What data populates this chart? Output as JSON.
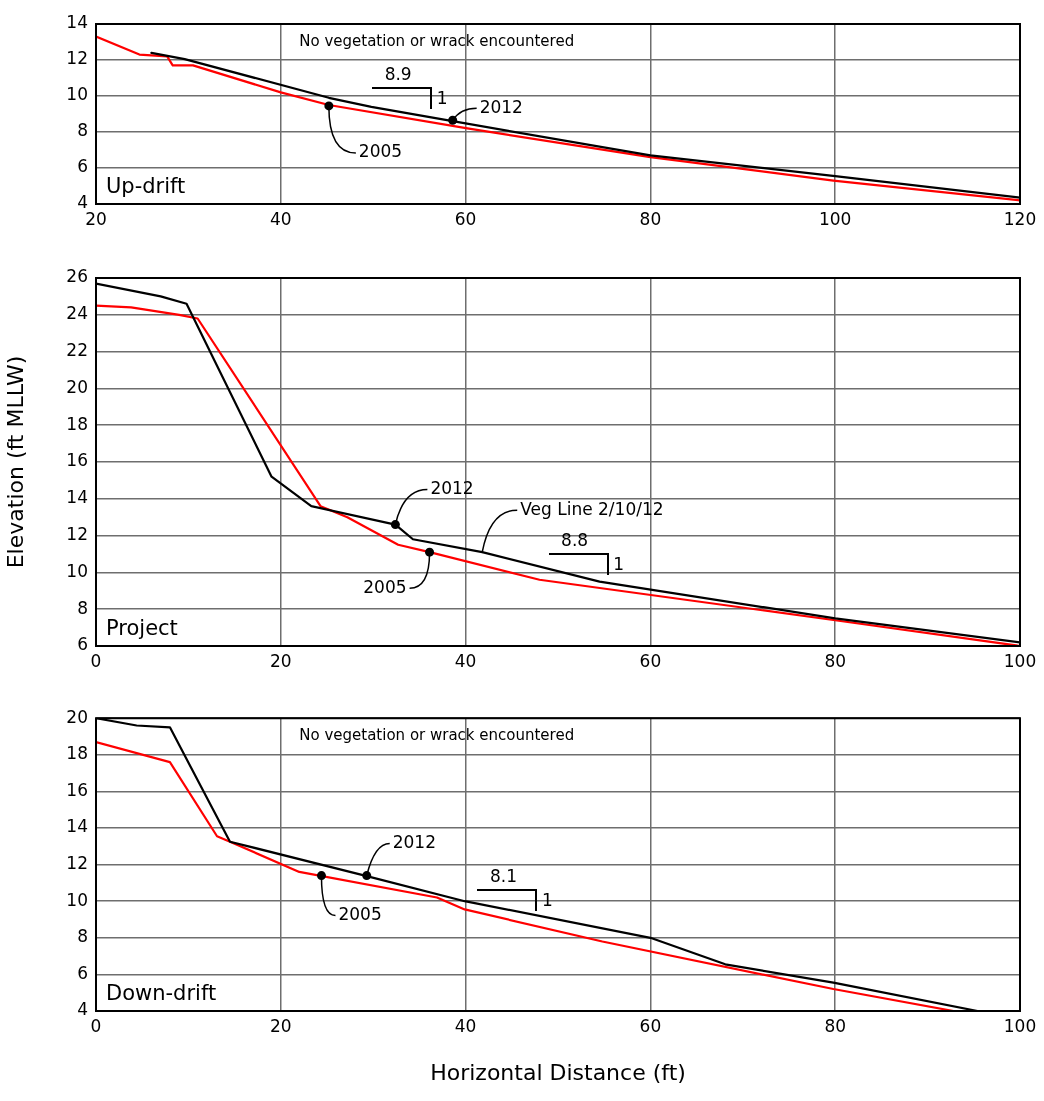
{
  "chart_data": [
    {
      "type": "line",
      "title": "Up-drift",
      "xlim": [
        20,
        120
      ],
      "xticks": [
        20,
        40,
        60,
        80,
        100,
        120
      ],
      "ylim": [
        4,
        14
      ],
      "yticks": [
        4,
        6,
        8,
        10,
        12,
        14
      ],
      "grid": true,
      "legend": false,
      "series": [
        {
          "color": "#000000",
          "x": [
            26,
            29.6,
            45.2,
            49.8,
            58.6,
            80,
            100,
            120
          ],
          "values": [
            12.4,
            12.05,
            9.9,
            9.4,
            8.6,
            6.7,
            5.55,
            4.35
          ]
        },
        {
          "color": "#ff0000",
          "x": [
            20,
            24.7,
            27.7,
            28.3,
            30.5,
            40,
            45.2,
            60.2,
            80,
            99.8,
            120
          ],
          "values": [
            13.3,
            12.3,
            12.2,
            11.7,
            11.7,
            10.2,
            9.5,
            8.2,
            6.6,
            5.3,
            4.2
          ]
        }
      ],
      "annotations": [
        "No vegetation or wrack encountered",
        "8.9",
        "1",
        {
          "text": "2012",
          "x": 58.6,
          "y": 8.65
        },
        {
          "text": "2005",
          "x": 45.2,
          "y": 9.45
        }
      ]
    },
    {
      "type": "line",
      "title": "Project",
      "ylabel": "Elevation (ft MLLW)",
      "xlim": [
        0,
        100
      ],
      "xticks": [
        0,
        20,
        40,
        60,
        80,
        100
      ],
      "ylim": [
        6,
        26
      ],
      "yticks": [
        6,
        8,
        10,
        12,
        14,
        16,
        18,
        20,
        22,
        24,
        26
      ],
      "grid": true,
      "legend": false,
      "series": [
        {
          "color": "#000000",
          "x": [
            0,
            7,
            9.8,
            19,
            23.3,
            32.4,
            34.3,
            41.8,
            54.5,
            80,
            100
          ],
          "values": [
            25.7,
            25.0,
            24.6,
            15.2,
            13.6,
            12.6,
            11.8,
            11.1,
            9.5,
            7.5,
            6.2
          ]
        },
        {
          "color": "#ff0000",
          "x": [
            0,
            3.8,
            9,
            11,
            24.3,
            27.2,
            32.7,
            36.1,
            48,
            80,
            100
          ],
          "values": [
            24.5,
            24.4,
            24.0,
            23.8,
            13.6,
            13.0,
            11.5,
            11.1,
            9.6,
            7.4,
            6.0
          ]
        }
      ],
      "annotations": [
        "8.8",
        "1",
        {
          "text": "2012",
          "x": 32.4,
          "y": 12.6
        },
        {
          "text": "2005",
          "x": 36.1,
          "y": 11.1
        },
        {
          "text": "Veg Line 2/10/12",
          "x": 41.8,
          "y": 11.1
        }
      ]
    },
    {
      "type": "line",
      "title": "Down-drift",
      "xlabel": "Horizontal Distance (ft)",
      "xlim": [
        0,
        100
      ],
      "xticks": [
        0,
        20,
        40,
        60,
        80,
        100
      ],
      "ylim": [
        4,
        20
      ],
      "yticks": [
        4,
        6,
        8,
        10,
        12,
        14,
        16,
        18,
        20
      ],
      "grid": true,
      "legend": false,
      "series": [
        {
          "color": "#000000",
          "x": [
            0,
            4.4,
            8,
            14.5,
            29.1,
            39.9,
            60,
            68.1,
            79.8,
            95.4
          ],
          "values": [
            20,
            19.6,
            19.5,
            13.25,
            11.4,
            10.0,
            8.0,
            6.55,
            5.55,
            4.0
          ]
        },
        {
          "color": "#ff0000",
          "x": [
            0,
            8,
            13.1,
            14.5,
            22,
            36.9,
            39.9,
            54.8,
            79.8,
            92.8
          ],
          "values": [
            18.7,
            17.6,
            13.55,
            13.25,
            11.6,
            10.2,
            9.55,
            7.8,
            5.2,
            4.0
          ]
        }
      ],
      "annotations": [
        "No vegetation or wrack encountered",
        "8.1",
        "1",
        {
          "text": "2012",
          "x": 29.3,
          "y": 11.4
        },
        {
          "text": "2005",
          "x": 24.4,
          "y": 11.4
        }
      ]
    }
  ]
}
